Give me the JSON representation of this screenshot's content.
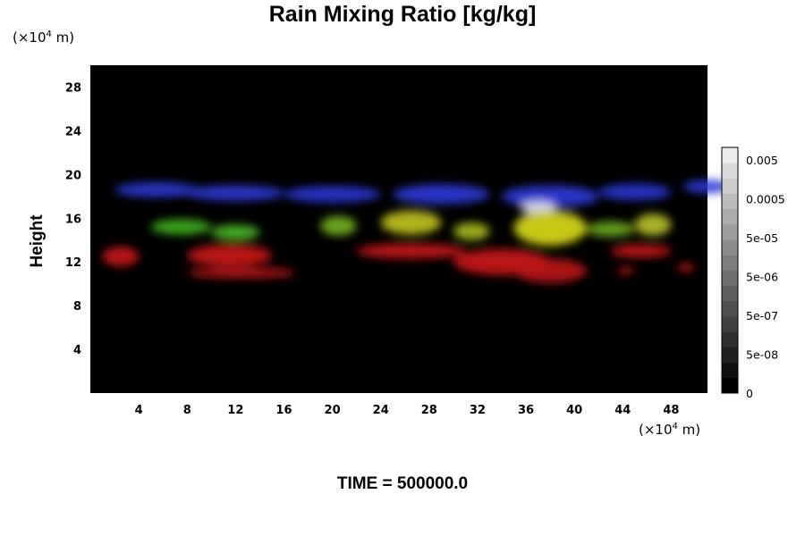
{
  "chart_data": {
    "type": "heatmap",
    "title": "Rain Mixing Ratio [kg/kg]",
    "ylabel": "Height",
    "x_unit": {
      "base": "(×10",
      "exp": "4",
      "rest": " m)"
    },
    "y_unit": {
      "base": "(×10",
      "exp": "4",
      "rest": " m)"
    },
    "xlim": [
      0,
      51
    ],
    "ylim": [
      0,
      30
    ],
    "x_ticks": [
      4,
      8,
      12,
      16,
      20,
      24,
      28,
      32,
      36,
      40,
      44,
      48
    ],
    "y_ticks": [
      4,
      8,
      12,
      16,
      20,
      24,
      28
    ],
    "background_color": "#000000",
    "field_blobs": [
      {
        "layer": "blue",
        "color": "#2a3ad8",
        "x": 2,
        "y": 18.6,
        "w": 7,
        "h": 1.3
      },
      {
        "layer": "blue",
        "color": "#2a3ad8",
        "x": 8,
        "y": 18.3,
        "w": 8,
        "h": 1.4
      },
      {
        "layer": "blue",
        "color": "#2838d0",
        "x": 16,
        "y": 18.2,
        "w": 8,
        "h": 1.5
      },
      {
        "layer": "blue",
        "color": "#2a3ad8",
        "x": 25,
        "y": 18.2,
        "w": 8,
        "h": 1.8
      },
      {
        "layer": "blue",
        "color": "#2a3ad8",
        "x": 34,
        "y": 18.0,
        "w": 8,
        "h": 2.0
      },
      {
        "layer": "blue",
        "color": "#2838d0",
        "x": 42,
        "y": 18.4,
        "w": 6,
        "h": 1.5
      },
      {
        "layer": "blue",
        "color": "#2a3ad8",
        "x": 49,
        "y": 18.9,
        "w": 4,
        "h": 1.2
      },
      {
        "layer": "white",
        "color": "#dcdcf0",
        "x": 35.5,
        "y": 17.0,
        "w": 3,
        "h": 1.2
      },
      {
        "layer": "green",
        "color": "#40b020",
        "x": 5,
        "y": 15.2,
        "w": 5,
        "h": 1.4
      },
      {
        "layer": "green",
        "color": "#48b828",
        "x": 10,
        "y": 14.7,
        "w": 4,
        "h": 1.4
      },
      {
        "layer": "green",
        "color": "#70b020",
        "x": 19,
        "y": 15.3,
        "w": 3,
        "h": 1.8
      },
      {
        "layer": "green",
        "color": "#6aa820",
        "x": 41,
        "y": 15.0,
        "w": 4,
        "h": 1.4
      },
      {
        "layer": "yellow",
        "color": "#c0c020",
        "x": 24,
        "y": 15.6,
        "w": 5,
        "h": 2.2
      },
      {
        "layer": "yellow",
        "color": "#d8d818",
        "x": 35,
        "y": 15.1,
        "w": 6,
        "h": 3.2
      },
      {
        "layer": "yellow",
        "color": "#b8c028",
        "x": 45,
        "y": 15.4,
        "w": 3,
        "h": 2.0
      },
      {
        "layer": "yellow",
        "color": "#a8b820",
        "x": 30,
        "y": 14.8,
        "w": 3,
        "h": 1.6
      },
      {
        "layer": "red",
        "color": "#c81818",
        "x": 1,
        "y": 12.5,
        "w": 3,
        "h": 1.8
      },
      {
        "layer": "red",
        "color": "#c81818",
        "x": 8,
        "y": 12.6,
        "w": 7,
        "h": 2.0
      },
      {
        "layer": "red",
        "color": "#b81414",
        "x": 8,
        "y": 11.0,
        "w": 9,
        "h": 1.0
      },
      {
        "layer": "red",
        "color": "#c81818",
        "x": 22,
        "y": 13.0,
        "w": 9,
        "h": 1.4
      },
      {
        "layer": "red",
        "color": "#c81818",
        "x": 30,
        "y": 12.0,
        "w": 8,
        "h": 2.4
      },
      {
        "layer": "red",
        "color": "#b81414",
        "x": 35,
        "y": 11.2,
        "w": 6,
        "h": 2.2
      },
      {
        "layer": "red",
        "color": "#c81818",
        "x": 43,
        "y": 13.0,
        "w": 5,
        "h": 1.2
      },
      {
        "layer": "red",
        "color": "#c81818",
        "x": 43.5,
        "y": 11.2,
        "w": 1.5,
        "h": 0.6
      },
      {
        "layer": "red",
        "color": "#c81818",
        "x": 48.5,
        "y": 11.5,
        "w": 1.4,
        "h": 0.7
      }
    ],
    "colorbar": {
      "labels": [
        "0.005",
        "0.0005",
        "5e-05",
        "5e-06",
        "5e-07",
        "5e-08",
        "0"
      ],
      "bands": 16
    },
    "time_label": "TIME = 500000.0"
  }
}
